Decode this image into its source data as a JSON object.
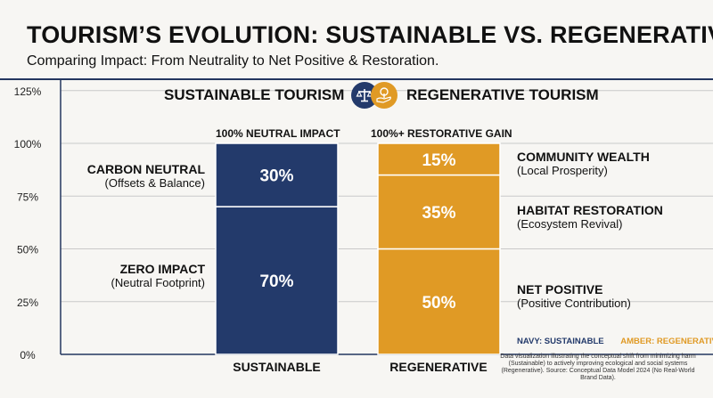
{
  "header": {
    "title": "TOURISM’S EVOLUTION: SUSTAINABLE VS. REGENERATIVE",
    "subtitle": "Comparing Impact: From Neutrality to Net Positive & Restoration."
  },
  "legend": {
    "left_title": "SUSTAINABLE TOURISM",
    "left_icon": "scales-icon",
    "right_title": "REGENERATIVE TOURISM",
    "right_icon": "tree-in-hand-icon",
    "navy_tag": "NAVY: SUSTAINABLE",
    "amber_tag": "AMBER: REGENERATIVE"
  },
  "bar_headers": {
    "sustainable": "100% NEUTRAL IMPACT",
    "regenerative": "100%+ RESTORATIVE GAIN"
  },
  "left_labels": [
    {
      "main": "CARBON NEUTRAL",
      "sub": "(Offsets & Balance)"
    },
    {
      "main": "ZERO IMPACT",
      "sub": "(Neutral Footprint)"
    }
  ],
  "right_labels": [
    {
      "main": "COMMUNITY WEALTH",
      "sub": "(Local Prosperity)"
    },
    {
      "main": "HABITAT RESTORATION",
      "sub": "(Ecosystem Revival)"
    },
    {
      "main": "NET POSITIVE",
      "sub": "(Positive Contribution)"
    }
  ],
  "footnote": "Data visualization illustrating the conceptual shift from minimizing harm (Sustainable) to actively improving ecological and social systems (Regenerative). Source: Conceptual Data Model 2024 (No Real-World Brand Data).",
  "chart_data": {
    "type": "bar",
    "stacked": true,
    "categories": [
      "SUSTAINABLE",
      "REGENERATIVE"
    ],
    "ylim": [
      0,
      125
    ],
    "yticks": [
      "0%",
      "25%",
      "50%",
      "75%",
      "100%",
      "125%"
    ],
    "ytick_values": [
      0,
      25,
      50,
      75,
      100,
      125
    ],
    "grid": true,
    "stacks": [
      {
        "category": "SUSTAINABLE",
        "color": "#233a6b",
        "segments": [
          {
            "name": "ZERO IMPACT",
            "value": 70,
            "label": "70%"
          },
          {
            "name": "CARBON NEUTRAL",
            "value": 30,
            "label": "30%"
          }
        ]
      },
      {
        "category": "REGENERATIVE",
        "color": "#e09a25",
        "segments": [
          {
            "name": "NET POSITIVE",
            "value": 50,
            "label": "50%"
          },
          {
            "name": "HABITAT RESTORATION",
            "value": 35,
            "label": "35%"
          },
          {
            "name": "COMMUNITY WEALTH",
            "value": 15,
            "label": "15%"
          }
        ]
      }
    ]
  }
}
